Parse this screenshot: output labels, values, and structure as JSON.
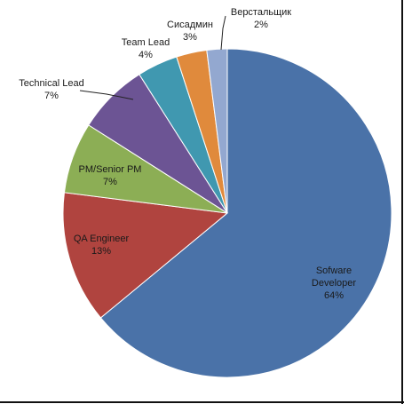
{
  "chart_data": {
    "type": "pie",
    "title": "",
    "slices": [
      {
        "label": "Sofware Developer",
        "label_lines": [
          "Sofware",
          "Developer"
        ],
        "percent_label": "64%",
        "value": 64,
        "color": "#4a72a8"
      },
      {
        "label": "QA Engineer",
        "label_lines": [
          "QA Engineer"
        ],
        "percent_label": "13%",
        "value": 13,
        "color": "#b0443f"
      },
      {
        "label": "PM/Senior PM",
        "label_lines": [
          "PM/Senior PM"
        ],
        "percent_label": "7%",
        "value": 7,
        "color": "#8cae55"
      },
      {
        "label": "Technical Lead",
        "label_lines": [
          "Technical Lead"
        ],
        "percent_label": "7%",
        "value": 7,
        "color": "#6c5494"
      },
      {
        "label": "Team Lead",
        "label_lines": [
          "Team Lead"
        ],
        "percent_label": "4%",
        "value": 4,
        "color": "#4098b0"
      },
      {
        "label": "Сисадмин",
        "label_lines": [
          "Сисадмин"
        ],
        "percent_label": "3%",
        "value": 3,
        "color": "#e08a3c"
      },
      {
        "label": "Верстальщик",
        "label_lines": [
          "Верстальщик"
        ],
        "percent_label": "2%",
        "value": 2,
        "color": "#93a8d0"
      }
    ],
    "legend": "none",
    "start_angle": "top, clockwise"
  }
}
